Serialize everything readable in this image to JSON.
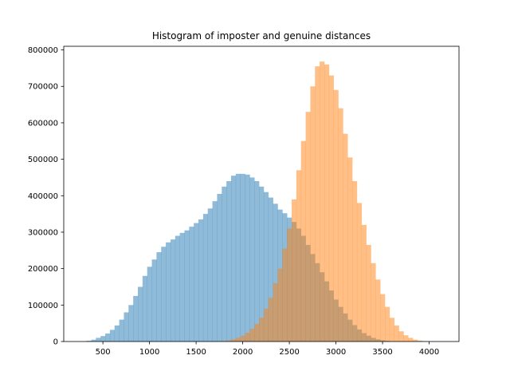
{
  "chart_data": {
    "type": "bar",
    "subtype": "overlaid-histogram",
    "title": "Histogram of imposter and genuine distances",
    "xlabel": "",
    "ylabel": "",
    "xlim": [
      80,
      4320
    ],
    "ylim": [
      0,
      810000
    ],
    "xticks": [
      500,
      1000,
      1500,
      2000,
      2500,
      3000,
      3500,
      4000
    ],
    "yticks": [
      0,
      100000,
      200000,
      300000,
      400000,
      500000,
      600000,
      700000,
      800000
    ],
    "grid": false,
    "legend": "none",
    "bin_width": 50,
    "series": [
      {
        "color": "#1f77b4",
        "alpha": 0.5,
        "bin_centers": [
          350,
          400,
          450,
          500,
          550,
          600,
          650,
          700,
          750,
          800,
          850,
          900,
          950,
          1000,
          1050,
          1100,
          1150,
          1200,
          1250,
          1300,
          1350,
          1400,
          1450,
          1500,
          1550,
          1600,
          1650,
          1700,
          1750,
          1800,
          1850,
          1900,
          1950,
          2000,
          2050,
          2100,
          2150,
          2200,
          2250,
          2300,
          2350,
          2400,
          2450,
          2500,
          2550,
          2600,
          2650,
          2700,
          2750,
          2800,
          2850,
          2900,
          2950,
          3000,
          3050,
          3100,
          3150,
          3200,
          3250,
          3300,
          3350,
          3400,
          3450,
          3500,
          3550,
          3600,
          3650,
          3700,
          3750,
          3800
        ],
        "values": [
          2000,
          5000,
          10000,
          15000,
          22000,
          32000,
          44000,
          60000,
          80000,
          100000,
          125000,
          150000,
          180000,
          205000,
          225000,
          245000,
          260000,
          272000,
          280000,
          290000,
          298000,
          305000,
          315000,
          325000,
          335000,
          350000,
          365000,
          385000,
          405000,
          425000,
          440000,
          455000,
          460000,
          460000,
          458000,
          450000,
          440000,
          425000,
          410000,
          395000,
          378000,
          362000,
          352000,
          340000,
          328000,
          310000,
          290000,
          265000,
          240000,
          215000,
          190000,
          165000,
          140000,
          115000,
          95000,
          77000,
          60000,
          45000,
          33000,
          23000,
          16000,
          10000,
          6000,
          3500,
          2000,
          1000,
          500,
          250,
          100,
          50
        ]
      },
      {
        "color": "#ff7f0e",
        "alpha": 0.5,
        "bin_centers": [
          1800,
          1850,
          1900,
          1950,
          2000,
          2050,
          2100,
          2150,
          2200,
          2250,
          2300,
          2350,
          2400,
          2450,
          2500,
          2550,
          2600,
          2650,
          2700,
          2750,
          2800,
          2850,
          2900,
          2950,
          3000,
          3050,
          3100,
          3150,
          3200,
          3250,
          3300,
          3350,
          3400,
          3450,
          3500,
          3550,
          3600,
          3650,
          3700,
          3750,
          3800,
          3850,
          3900,
          3950
        ],
        "values": [
          1000,
          3000,
          6000,
          10000,
          16000,
          24000,
          35000,
          48000,
          65000,
          90000,
          120000,
          160000,
          200000,
          255000,
          310000,
          390000,
          470000,
          550000,
          630000,
          700000,
          755000,
          768000,
          760000,
          730000,
          690000,
          640000,
          570000,
          505000,
          440000,
          380000,
          320000,
          265000,
          215000,
          170000,
          130000,
          95000,
          65000,
          44000,
          28000,
          17000,
          10000,
          5000,
          2500,
          1000
        ]
      }
    ]
  }
}
